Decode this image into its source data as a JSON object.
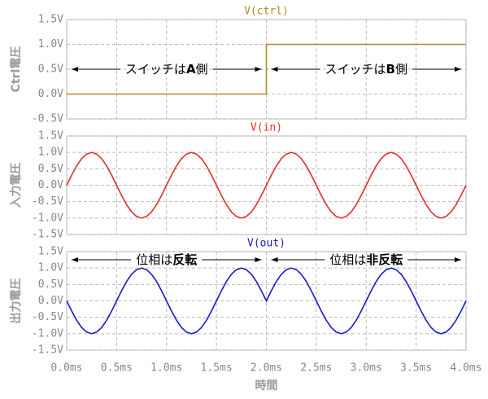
{
  "chart_data": [
    {
      "type": "line",
      "ylabel": "Ctrl電圧",
      "x": [
        0,
        2,
        2,
        4
      ],
      "series": [
        {
          "name": "V(ctrl)",
          "color": "#b08a1e",
          "values": [
            0,
            0,
            1,
            1
          ]
        }
      ],
      "xlim": [
        0,
        4
      ],
      "ylim": [
        -0.5,
        1.5
      ],
      "yticks": [
        {
          "value": -0.5,
          "label": "-0.5V"
        },
        {
          "value": 0,
          "label": "0.0V"
        },
        {
          "value": 0.5,
          "label": "0.5V"
        },
        {
          "value": 1,
          "label": "1.0V"
        },
        {
          "value": 1.5,
          "label": "1.5V"
        }
      ],
      "grid": true,
      "annotations": [
        {
          "parts": [
            "スイッチは",
            "A",
            "側"
          ]
        },
        {
          "parts": [
            "スイッチは",
            "B",
            "側"
          ]
        }
      ]
    },
    {
      "type": "line",
      "ylabel": "入力電圧",
      "x": [
        0,
        0.05,
        0.1,
        0.15,
        0.2,
        0.25,
        0.3,
        0.35,
        0.4,
        0.45,
        0.5,
        0.55,
        0.6,
        0.65,
        0.7,
        0.75,
        0.8,
        0.85,
        0.9,
        0.95,
        1,
        1.05,
        1.1,
        1.15,
        1.2,
        1.25,
        1.3,
        1.35,
        1.4,
        1.45,
        1.5,
        1.55,
        1.6,
        1.65,
        1.7,
        1.75,
        1.8,
        1.85,
        1.9,
        1.95,
        2,
        2.05,
        2.1,
        2.15,
        2.2,
        2.25,
        2.3,
        2.35,
        2.4,
        2.45,
        2.5,
        2.55,
        2.6,
        2.65,
        2.7,
        2.75,
        2.8,
        2.85,
        2.9,
        2.95,
        3,
        3.05,
        3.1,
        3.15,
        3.2,
        3.25,
        3.3,
        3.35,
        3.4,
        3.45,
        3.5,
        3.55,
        3.6,
        3.65,
        3.7,
        3.75,
        3.8,
        3.85,
        3.9,
        3.95,
        4
      ],
      "series": [
        {
          "name": "V(in)",
          "color": "#e0302a",
          "values": [
            0,
            0.31,
            0.59,
            0.81,
            0.95,
            1,
            0.95,
            0.81,
            0.59,
            0.31,
            0,
            -0.31,
            -0.59,
            -0.81,
            -0.95,
            -1,
            -0.95,
            -0.81,
            -0.59,
            -0.31,
            0,
            0.31,
            0.59,
            0.81,
            0.95,
            1,
            0.95,
            0.81,
            0.59,
            0.31,
            0,
            -0.31,
            -0.59,
            -0.81,
            -0.95,
            -1,
            -0.95,
            -0.81,
            -0.59,
            -0.31,
            0,
            0.31,
            0.59,
            0.81,
            0.95,
            1,
            0.95,
            0.81,
            0.59,
            0.31,
            0,
            -0.31,
            -0.59,
            -0.81,
            -0.95,
            -1,
            -0.95,
            -0.81,
            -0.59,
            -0.31,
            0,
            0.31,
            0.59,
            0.81,
            0.95,
            1,
            0.95,
            0.81,
            0.59,
            0.31,
            0,
            -0.31,
            -0.59,
            -0.81,
            -0.95,
            -1,
            -0.95,
            -0.81,
            -0.59,
            -0.31,
            0
          ]
        }
      ],
      "xlim": [
        0,
        4
      ],
      "ylim": [
        -1.5,
        1.5
      ],
      "yticks": [
        {
          "value": -1.5,
          "label": "-1.5V"
        },
        {
          "value": -1,
          "label": "-1.0V"
        },
        {
          "value": -0.5,
          "label": "-0.5V"
        },
        {
          "value": 0,
          "label": "0.0V"
        },
        {
          "value": 0.5,
          "label": "0.5V"
        },
        {
          "value": 1,
          "label": "1.0V"
        },
        {
          "value": 1.5,
          "label": "1.5V"
        }
      ],
      "grid": true
    },
    {
      "type": "line",
      "ylabel": "出力電圧",
      "xlabel": "時間",
      "x": [
        0,
        0.05,
        0.1,
        0.15,
        0.2,
        0.25,
        0.3,
        0.35,
        0.4,
        0.45,
        0.5,
        0.55,
        0.6,
        0.65,
        0.7,
        0.75,
        0.8,
        0.85,
        0.9,
        0.95,
        1,
        1.05,
        1.1,
        1.15,
        1.2,
        1.25,
        1.3,
        1.35,
        1.4,
        1.45,
        1.5,
        1.55,
        1.6,
        1.65,
        1.7,
        1.75,
        1.8,
        1.85,
        1.9,
        1.95,
        2,
        2.05,
        2.1,
        2.15,
        2.2,
        2.25,
        2.3,
        2.35,
        2.4,
        2.45,
        2.5,
        2.55,
        2.6,
        2.65,
        2.7,
        2.75,
        2.8,
        2.85,
        2.9,
        2.95,
        3,
        3.05,
        3.1,
        3.15,
        3.2,
        3.25,
        3.3,
        3.35,
        3.4,
        3.45,
        3.5,
        3.55,
        3.6,
        3.65,
        3.7,
        3.75,
        3.8,
        3.85,
        3.9,
        3.95,
        4
      ],
      "series": [
        {
          "name": "V(out)",
          "color": "#1a1ad0",
          "values": [
            0,
            -0.31,
            -0.59,
            -0.81,
            -0.95,
            -1,
            -0.95,
            -0.81,
            -0.59,
            -0.31,
            0,
            0.31,
            0.59,
            0.81,
            0.95,
            1,
            0.95,
            0.81,
            0.59,
            0.31,
            0,
            -0.31,
            -0.59,
            -0.81,
            -0.95,
            -1,
            -0.95,
            -0.81,
            -0.59,
            -0.31,
            0,
            0.31,
            0.59,
            0.81,
            0.95,
            1,
            0.95,
            0.81,
            0.59,
            0.31,
            0,
            0.31,
            0.59,
            0.81,
            0.95,
            1,
            0.95,
            0.81,
            0.59,
            0.31,
            0,
            -0.31,
            -0.59,
            -0.81,
            -0.95,
            -1,
            -0.95,
            -0.81,
            -0.59,
            -0.31,
            0,
            0.31,
            0.59,
            0.81,
            0.95,
            1,
            0.95,
            0.81,
            0.59,
            0.31,
            0,
            -0.31,
            -0.59,
            -0.81,
            -0.95,
            -1,
            -0.95,
            -0.81,
            -0.59,
            -0.31,
            0
          ]
        }
      ],
      "xlim": [
        0,
        4
      ],
      "ylim": [
        -1.5,
        1.5
      ],
      "yticks": [
        {
          "value": -1.5,
          "label": "-1.5V"
        },
        {
          "value": -1,
          "label": "-1.0V"
        },
        {
          "value": -0.5,
          "label": "-0.5V"
        },
        {
          "value": 0,
          "label": "0.0V"
        },
        {
          "value": 0.5,
          "label": "0.5V"
        },
        {
          "value": 1,
          "label": "1.0V"
        },
        {
          "value": 1.5,
          "label": "1.5V"
        }
      ],
      "xticks": [
        {
          "value": 0,
          "label": "0.0ms"
        },
        {
          "value": 0.5,
          "label": "0.5ms"
        },
        {
          "value": 1,
          "label": "1.0ms"
        },
        {
          "value": 1.5,
          "label": "1.5ms"
        },
        {
          "value": 2,
          "label": "2.0ms"
        },
        {
          "value": 2.5,
          "label": "2.5ms"
        },
        {
          "value": 3,
          "label": "3.0ms"
        },
        {
          "value": 3.5,
          "label": "3.5ms"
        },
        {
          "value": 4,
          "label": "4.0ms"
        }
      ],
      "grid": true,
      "annotations": [
        {
          "parts": [
            "位相は",
            "反転"
          ]
        },
        {
          "parts": [
            "位相は",
            "非反転"
          ]
        }
      ]
    }
  ]
}
